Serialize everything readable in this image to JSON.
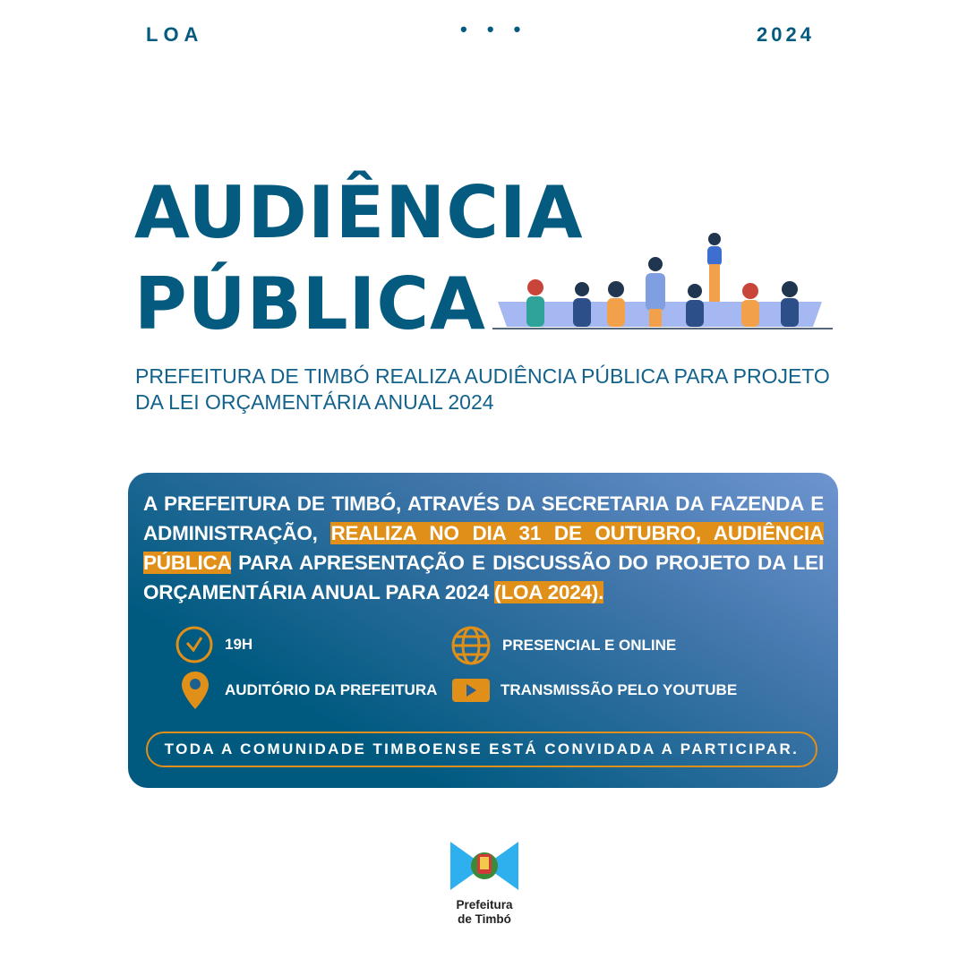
{
  "header": {
    "left": "LOA",
    "center": "• • •",
    "right": "2024"
  },
  "title": {
    "line1": "AUDIÊNCIA",
    "line2": "PÚBLICA"
  },
  "subtitle": "PREFEITURA DE TIMBÓ REALIZA AUDIÊNCIA PÚBLICA PARA PROJETO DA LEI ORÇAMENTÁRIA ANUAL 2024",
  "card": {
    "para_1": "A PREFEITURA DE TIMBÓ, ATRAVÉS DA SECRETARIA DA FAZENDA E ADMINISTRAÇÃO, ",
    "para_hl_1": "REALIZA NO DIA 31 DE OUTUBRO, AUDIÊNCIA PÚBLICA",
    "para_2": " PARA APRESENTAÇÃO E DISCUSSÃO DO PROJETO DA LEI ORÇAMENTÁRIA ANUAL PARA 2024 ",
    "para_hl_2": "(LOA 2024).",
    "info": [
      {
        "icon": "clock-icon",
        "label": "19H"
      },
      {
        "icon": "globe-icon",
        "label": "PRESENCIAL E ONLINE"
      },
      {
        "icon": "location-pin-icon",
        "label": "AUDITÓRIO DA PREFEITURA"
      },
      {
        "icon": "play-icon",
        "label": "TRANSMISSÃO PELO YOUTUBE"
      }
    ],
    "cta": "TODA A COMUNIDADE TIMBOENSE ESTÁ CONVIDADA A PARTICIPAR."
  },
  "logo": {
    "line1": "Prefeitura",
    "line2": "de Timbó"
  },
  "colors": {
    "primary": "#055a80",
    "accent": "#e08f18",
    "card_gradient_end": "#6e95d0"
  }
}
